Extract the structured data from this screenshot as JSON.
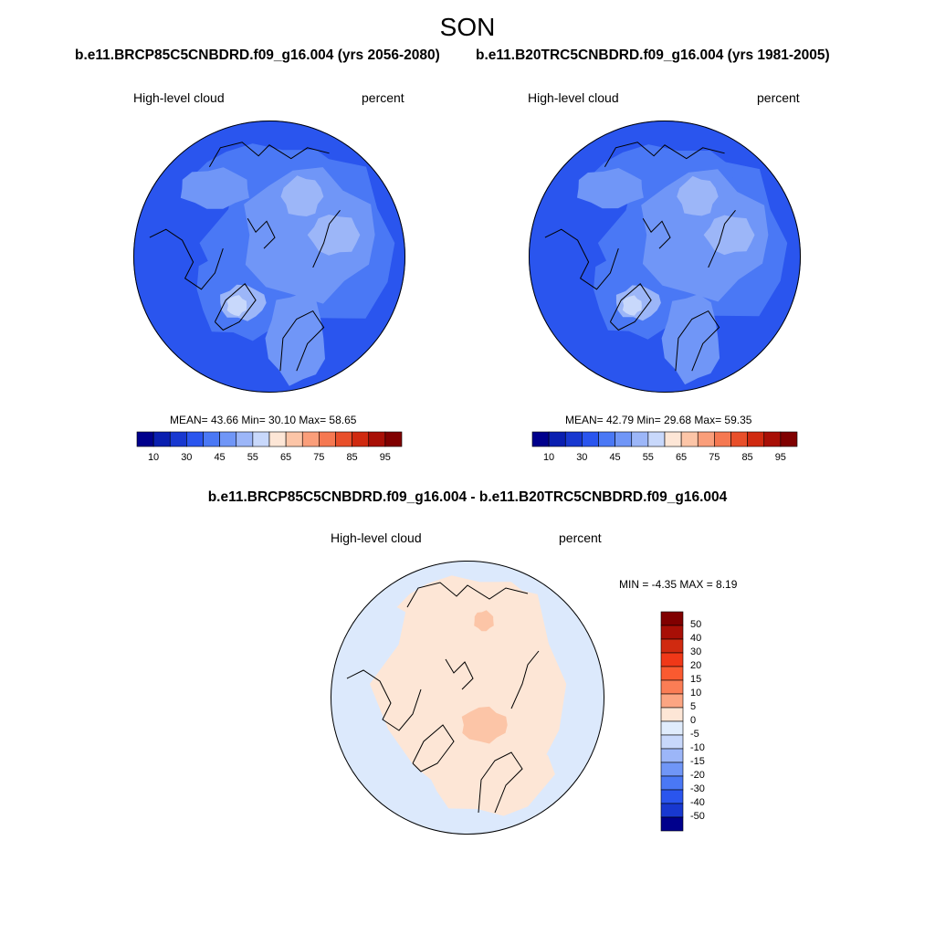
{
  "figure": {
    "season": "SON"
  },
  "panels": [
    {
      "header": "b.e11.BRCP85C5CNBDRD.f09_g16.004 (yrs 2056-2080)",
      "variable": "High-level cloud",
      "units": "percent",
      "stats": "MEAN=  43.66  Min=  30.10  Max=  58.65"
    },
    {
      "header": "b.e11.B20TRC5CNBDRD.f09_g16.004 (yrs 1981-2005)",
      "variable": "High-level cloud",
      "units": "percent",
      "stats": "MEAN=  42.79  Min=  29.68  Max=  59.35"
    }
  ],
  "difference": {
    "header": "b.e11.BRCP85C5CNBDRD.f09_g16.004 - b.e11.B20TRC5CNBDRD.f09_g16.004",
    "variable": "High-level cloud",
    "units": "percent",
    "stats": "MIN =  -4.35 MAX =   8.19"
  },
  "colorbars": {
    "main_ticks": [
      "10",
      "30",
      "45",
      "55",
      "65",
      "75",
      "85",
      "95"
    ],
    "main_colors": [
      "#00008c",
      "#0a1fb0",
      "#1838d0",
      "#2a55ee",
      "#4a78f5",
      "#7096f7",
      "#9cb6f8",
      "#c8d8fb",
      "#fde6d6",
      "#fcc5a7",
      "#fa9e7a",
      "#f57851",
      "#e84f2a",
      "#d02a10",
      "#a80f06",
      "#800000"
    ],
    "diff_ticks": [
      "50",
      "40",
      "30",
      "20",
      "15",
      "10",
      "5",
      "0",
      "-5",
      "-10",
      "-15",
      "-20",
      "-30",
      "-40",
      "-50"
    ],
    "diff_colors": [
      "#800000",
      "#a80f06",
      "#d02a10",
      "#f03818",
      "#fa5a30",
      "#fb7d55",
      "#fca582",
      "#fde6d6",
      "#e0ecfc",
      "#c8d8fb",
      "#9cb6f8",
      "#7096f7",
      "#4a78f5",
      "#2a55ee",
      "#1838d0",
      "#00008c"
    ]
  },
  "map_colors": {
    "c35": "#2a55ee",
    "c45": "#4a78f5",
    "c50": "#7096f7",
    "c55": "#9cb6f8",
    "c60": "#c8d8fb",
    "d_pos": "#fde6d6",
    "d_neg": "#dce9fc",
    "d_pos2": "#fcc5a7"
  }
}
